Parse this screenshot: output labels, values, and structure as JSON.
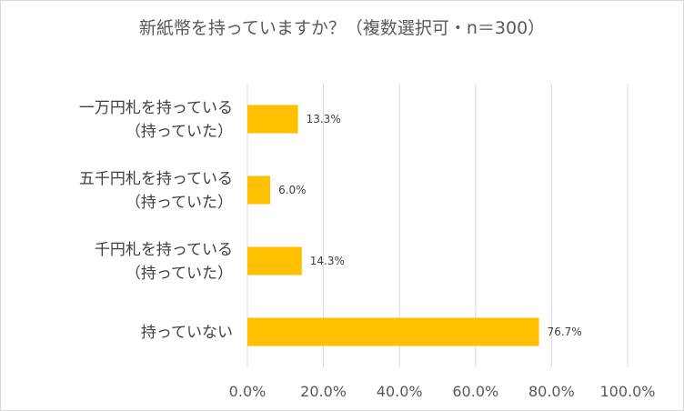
{
  "title": "新紙幣を持っていますか？（複数選択可・n＝300）",
  "colors": {
    "bar": "#ffc000",
    "grid": "#d9d9d9",
    "text": "#595959"
  },
  "chart_data": {
    "type": "bar",
    "orientation": "horizontal",
    "title": "新紙幣を持っていますか？（複数選択可・n＝300）",
    "categories": [
      [
        "一万円札を持っている",
        "（持っていた）"
      ],
      [
        "五千円札を持っている",
        "（持っていた）"
      ],
      [
        "千円札を持っている",
        "（持っていた）"
      ],
      [
        "持っていない"
      ]
    ],
    "values": [
      13.3,
      6.0,
      14.3,
      76.7
    ],
    "data_labels": [
      "13.3%",
      "6.0%",
      "14.3%",
      "76.7%"
    ],
    "xlim": [
      0,
      100
    ],
    "xticks": [
      0,
      20,
      40,
      60,
      80,
      100
    ],
    "xtick_labels": [
      "0.0%",
      "20.0%",
      "40.0%",
      "60.0%",
      "80.0%",
      "100.0%"
    ],
    "grid": true,
    "legend": "none"
  }
}
